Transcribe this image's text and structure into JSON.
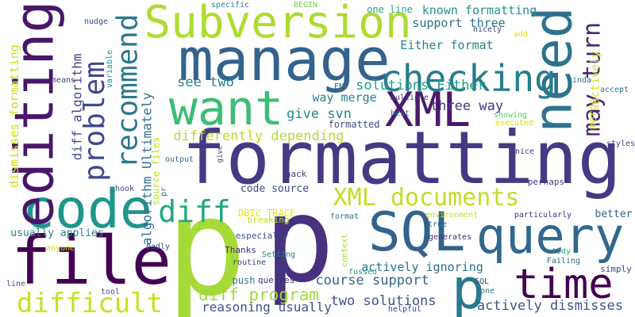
{
  "words": [
    {
      "text": "p",
      "color": "#a5db36"
    },
    {
      "text": "p",
      "color": "#46327e"
    },
    {
      "text": "formatting",
      "color": "#443a83"
    },
    {
      "text": "manage",
      "color": "#33638d"
    },
    {
      "text": "file",
      "color": "#440154"
    },
    {
      "text": "code",
      "color": "#1f968b"
    },
    {
      "text": "SQL",
      "color": "#33638d"
    },
    {
      "text": "query",
      "color": "#31688e"
    },
    {
      "text": "Subversion",
      "color": "#addc30"
    },
    {
      "text": "editing",
      "color": "#481769"
    },
    {
      "text": "want",
      "color": "#3dbc74"
    },
    {
      "text": "XML",
      "color": "#481a6c"
    },
    {
      "text": "need",
      "color": "#2c728e"
    },
    {
      "text": "time",
      "color": "#440154"
    },
    {
      "text": "checking",
      "color": "#287d8e"
    },
    {
      "text": "p",
      "color": "#2a788e"
    },
    {
      "text": "difficult",
      "color": "#c8e020"
    },
    {
      "text": "recommend",
      "color": "#2a788e"
    },
    {
      "text": "problem",
      "color": "#3e4a89"
    },
    {
      "text": "diff",
      "color": "#21a685"
    },
    {
      "text": "XML documents",
      "color": "#bddf26"
    },
    {
      "text": "may turn",
      "color": "#482878"
    },
    {
      "text": "differently depending",
      "color": "#b5de2b"
    },
    {
      "text": "diff program",
      "color": "#a0da39"
    },
    {
      "text": "two solutions",
      "color": "#3b528b"
    },
    {
      "text": "actively dismisses",
      "color": "#39558c"
    },
    {
      "text": "course support",
      "color": "#32648e"
    },
    {
      "text": "three way",
      "color": "#443983"
    },
    {
      "text": "give svn",
      "color": "#24868e"
    },
    {
      "text": "see two",
      "color": "#277f8e"
    },
    {
      "text": "solutions Either",
      "color": "#1f9e89"
    },
    {
      "text": "way merge",
      "color": "#27808e"
    },
    {
      "text": "Either format",
      "color": "#25848e"
    },
    {
      "text": "support three",
      "color": "#2d708e"
    },
    {
      "text": "known formatting",
      "color": "#21918c"
    },
    {
      "text": "algorithm Ultimately",
      "color": "#2e6e8e"
    },
    {
      "text": "diff algorithm",
      "color": "#404688"
    },
    {
      "text": "dismisses formatting",
      "color": "#cde11d"
    },
    {
      "text": "reasoning usually",
      "color": "#3b528b"
    },
    {
      "text": "actively ignoring",
      "color": "#2d708e"
    },
    {
      "text": "code source",
      "color": "#3e4a89"
    },
    {
      "text": "usually applies",
      "color": "#26828e"
    },
    {
      "text": "merge",
      "color": "#d8e219"
    },
    {
      "text": "actively",
      "color": "#d0e11c"
    },
    {
      "text": "DBIC_TRACE",
      "color": "#e5e419"
    },
    {
      "text": "one line",
      "color": "#1fa088"
    },
    {
      "text": "specific",
      "color": "#25838e"
    },
    {
      "text": "BEGIN",
      "color": "#7ad151"
    },
    {
      "text": "nudge",
      "color": "#3b528b"
    },
    {
      "text": "variable",
      "color": "#238a8d"
    },
    {
      "text": "means",
      "color": "#424086"
    },
    {
      "text": "ENV",
      "color": "#31688e"
    },
    {
      "text": "nicely",
      "color": "#414487"
    },
    {
      "text": "add",
      "color": "#d8e219"
    },
    {
      "text": "multiple",
      "color": "#433e85"
    },
    {
      "text": "best",
      "color": "#2a768e"
    },
    {
      "text": "formatted",
      "color": "#3e4c8a"
    },
    {
      "text": "showing",
      "color": "#56c667"
    },
    {
      "text": "executed",
      "color": "#d8e219"
    },
    {
      "text": "kinda",
      "color": "#2c718e"
    },
    {
      "text": "accept",
      "color": "#2d708e"
    },
    {
      "text": "styles",
      "color": "#3f4889"
    },
    {
      "text": "nice",
      "color": "#453581"
    },
    {
      "text": "output",
      "color": "#2e6f8e"
    },
    {
      "text": "give",
      "color": "#453781"
    },
    {
      "text": "hack",
      "color": "#46307e"
    },
    {
      "text": "perhaps",
      "color": "#46327e"
    },
    {
      "text": "source files",
      "color": "#bddf26"
    },
    {
      "text": "hook",
      "color": "#414487"
    },
    {
      "text": "pr",
      "color": "#31688e"
    },
    {
      "text": "breaking",
      "color": "#b8de29"
    },
    {
      "text": "better",
      "color": "#33638d"
    },
    {
      "text": "particularly",
      "color": "#46307e"
    },
    {
      "text": "environment",
      "color": "#c8e020"
    },
    {
      "text": "format",
      "color": "#2d708e"
    },
    {
      "text": "true",
      "color": "#2c718e"
    },
    {
      "text": "generates",
      "color": "#482475"
    },
    {
      "text": "tidy",
      "color": "#20a386"
    },
    {
      "text": "especially",
      "color": "#3b528b"
    },
    {
      "text": "Thanks",
      "color": "#472d7b"
    },
    {
      "text": "badly",
      "color": "#3b528b"
    },
    {
      "text": "anyone",
      "color": "#d2e21b"
    },
    {
      "text": "Setting",
      "color": "#26828e"
    },
    {
      "text": "context",
      "color": "#a8db34"
    },
    {
      "text": "Failing",
      "color": "#31688e"
    },
    {
      "text": "simply",
      "color": "#3e4989"
    },
    {
      "text": "routine",
      "color": "#424086"
    },
    {
      "text": "fussed",
      "color": "#1f9e89"
    },
    {
      "text": "queries",
      "color": "#472f7d"
    },
    {
      "text": "push",
      "color": "#2d708e"
    },
    {
      "text": "SQL",
      "color": "#424186"
    },
    {
      "text": "one",
      "color": "#26828e"
    },
    {
      "text": "line",
      "color": "#39568c"
    },
    {
      "text": "tool",
      "color": "#3e4a89"
    },
    {
      "text": "helpful",
      "color": "#433d84"
    }
  ]
}
